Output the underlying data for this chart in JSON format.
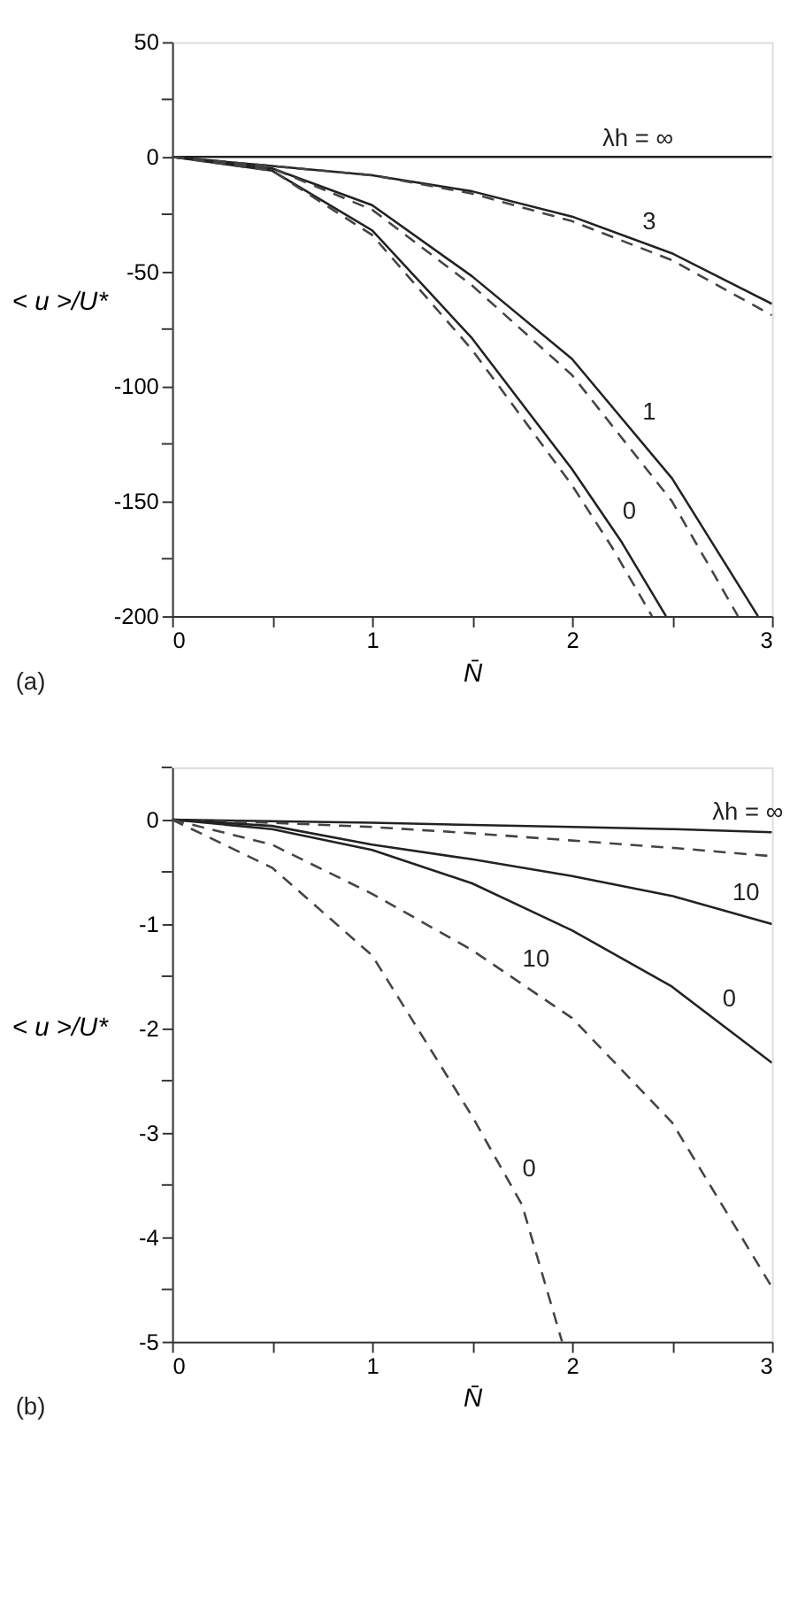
{
  "chart_data": [
    {
      "type": "line",
      "xlabel": "N̄",
      "ylabel": "< u >/U*",
      "xlim": [
        0,
        3
      ],
      "ylim": [
        -200,
        50
      ],
      "xticks": [
        0,
        {
          "value": 0.5,
          "label": null
        },
        1,
        {
          "value": 1.5,
          "label": null
        },
        2,
        {
          "value": 2.5,
          "label": null
        },
        3
      ],
      "yticks": [
        -200,
        {
          "value": -175,
          "label": null
        },
        -150,
        {
          "value": -125,
          "label": null
        },
        -100,
        {
          "value": -75,
          "label": null
        },
        -50,
        {
          "value": -25,
          "label": null
        },
        0,
        {
          "value": 25,
          "label": null
        },
        50
      ],
      "grid": false,
      "marker": "none",
      "series": [
        {
          "color": "#222222",
          "line_style": "solid",
          "x": [
            0,
            3
          ],
          "values": [
            0,
            0
          ]
        },
        {
          "color": "#222222",
          "line_style": "solid",
          "x": [
            0,
            0.5,
            1,
            1.5,
            2,
            2.5,
            3
          ],
          "values": [
            0,
            -4,
            -8,
            -15,
            -26,
            -42,
            -64
          ]
        },
        {
          "color": "#444444",
          "line_style": "dashed",
          "x": [
            0,
            0.5,
            1,
            1.5,
            2,
            2.5,
            3
          ],
          "values": [
            0,
            -4,
            -8,
            -16,
            -28,
            -45,
            -69
          ]
        },
        {
          "color": "#222222",
          "line_style": "solid",
          "x": [
            0,
            0.5,
            1,
            1.5,
            2,
            2.5,
            2.93
          ],
          "values": [
            0,
            -5,
            -21,
            -52,
            -88,
            -140,
            -200
          ]
        },
        {
          "color": "#444444",
          "line_style": "dashed",
          "x": [
            0,
            0.5,
            1,
            1.5,
            2,
            2.5,
            2.83
          ],
          "values": [
            0,
            -5,
            -23,
            -56,
            -95,
            -150,
            -200
          ]
        },
        {
          "color": "#222222",
          "line_style": "solid",
          "x": [
            0,
            0.5,
            1,
            1.5,
            2,
            2.25,
            2.47
          ],
          "values": [
            0,
            -6,
            -32,
            -79,
            -136,
            -168,
            -200
          ]
        },
        {
          "color": "#444444",
          "line_style": "dashed",
          "x": [
            0,
            0.5,
            1,
            1.5,
            2,
            2.2,
            2.4
          ],
          "values": [
            0,
            -6,
            -34,
            -84,
            -143,
            -170,
            -200
          ]
        }
      ],
      "annotations": [
        {
          "text": "λh = ∞",
          "x": 2.1,
          "y": 0
        },
        {
          "text": "3",
          "x": 2.3,
          "y": -36
        },
        {
          "text": "1",
          "x": 2.3,
          "y": -119
        },
        {
          "text": "0",
          "x": 2.2,
          "y": -162
        },
        "(a)"
      ]
    },
    {
      "type": "line",
      "xlabel": "N̄",
      "ylabel": "< u >/U*",
      "xlim": [
        0,
        3
      ],
      "ylim": [
        -5,
        0.5
      ],
      "xticks": [
        0,
        {
          "value": 0.5,
          "label": null
        },
        1,
        {
          "value": 1.5,
          "label": null
        },
        2,
        {
          "value": 2.5,
          "label": null
        },
        3
      ],
      "yticks": [
        -5,
        {
          "value": -4.5,
          "label": null
        },
        -4,
        {
          "value": -3.5,
          "label": null
        },
        -3,
        {
          "value": -2.5,
          "label": null
        },
        -2,
        {
          "value": -1.5,
          "label": null
        },
        -1,
        {
          "value": -0.5,
          "label": null
        },
        0,
        {
          "value": 0.5,
          "label": null
        }
      ],
      "grid": false,
      "marker": "none",
      "series": [
        {
          "color": "#222222",
          "line_style": "solid",
          "x": [
            0,
            1,
            1.5,
            2,
            2.5,
            3
          ],
          "values": [
            0,
            -0.03,
            -0.05,
            -0.07,
            -0.09,
            -0.12
          ]
        },
        {
          "color": "#444444",
          "line_style": "dashed",
          "x": [
            0,
            0.5,
            1,
            1.5,
            2,
            2.5,
            3
          ],
          "values": [
            0,
            -0.03,
            -0.07,
            -0.13,
            -0.2,
            -0.27,
            -0.35
          ]
        },
        {
          "color": "#222222",
          "line_style": "solid",
          "x": [
            0,
            0.5,
            1,
            1.5,
            2,
            2.5,
            3
          ],
          "values": [
            0,
            -0.06,
            -0.24,
            -0.38,
            -0.54,
            -0.73,
            -1.0
          ]
        },
        {
          "color": "#222222",
          "line_style": "solid",
          "x": [
            0,
            0.5,
            1,
            1.5,
            2,
            2.5,
            3
          ],
          "values": [
            0,
            -0.09,
            -0.29,
            -0.61,
            -1.06,
            -1.6,
            -2.33
          ]
        },
        {
          "color": "#444444",
          "line_style": "dashed",
          "x": [
            0,
            0.5,
            1,
            1.5,
            2,
            2.5,
            3
          ],
          "values": [
            0,
            -0.24,
            -0.71,
            -1.25,
            -1.9,
            -2.9,
            -4.48
          ]
        },
        {
          "color": "#444444",
          "line_style": "dashed",
          "x": [
            0,
            0.5,
            1,
            1.5,
            1.75,
            1.95
          ],
          "values": [
            0,
            -0.46,
            -1.3,
            -2.84,
            -3.69,
            -5.0
          ]
        }
      ],
      "annotations": [
        {
          "text": "λh = ∞",
          "x": 2.65,
          "y": -0.1
        },
        {
          "text": "10",
          "x": 2.75,
          "y": -0.87
        },
        {
          "text": "10",
          "x": 1.7,
          "y": -1.51
        },
        {
          "text": "0",
          "x": 2.7,
          "y": -1.89
        },
        {
          "text": "0",
          "x": 1.7,
          "y": -3.52
        },
        "(b)"
      ]
    }
  ]
}
